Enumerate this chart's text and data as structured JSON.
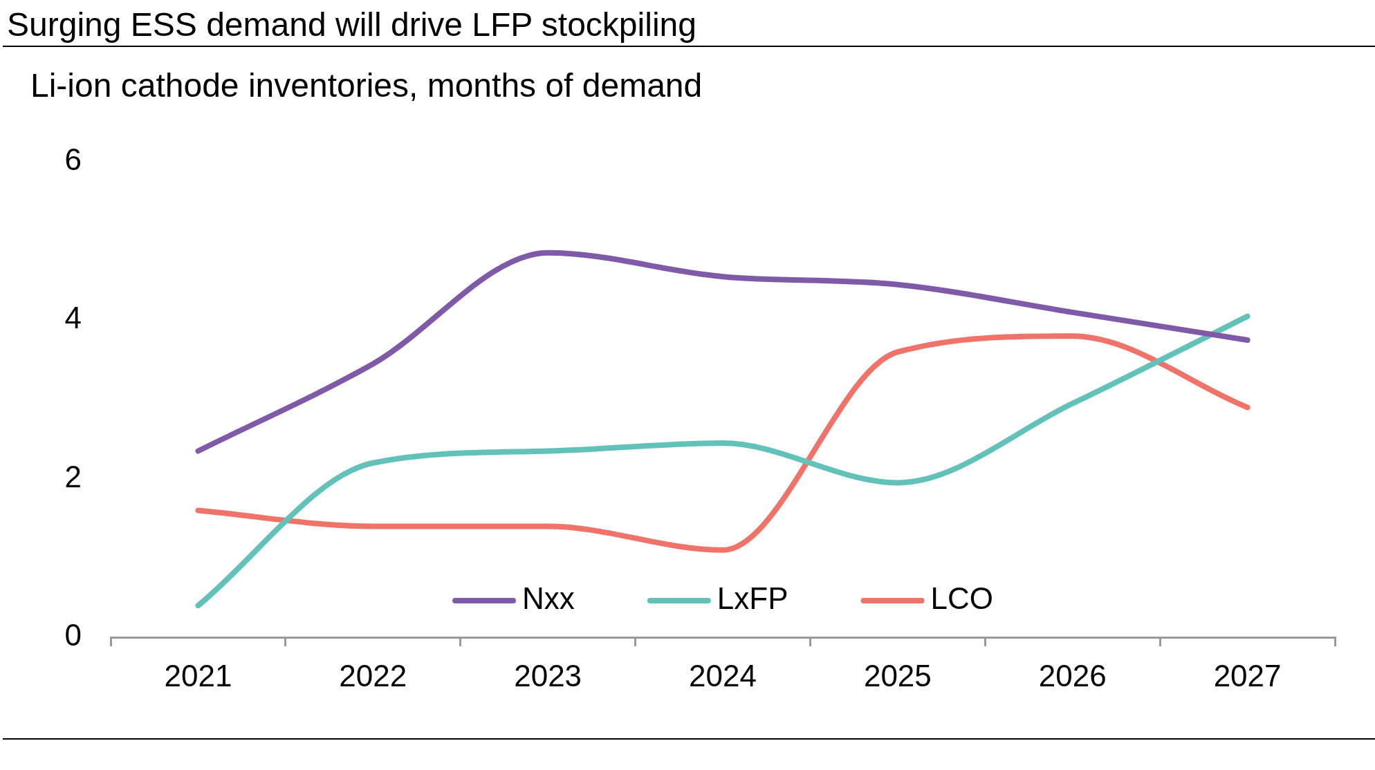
{
  "chart_data": {
    "type": "line",
    "title": "Surging ESS demand will drive LFP stockpiling",
    "subtitle": "Li-ion cathode inventories, months of demand",
    "categories": [
      "2021",
      "2022",
      "2023",
      "2024",
      "2025",
      "2026",
      "2027"
    ],
    "series": [
      {
        "name": "Nxx",
        "color": "#7f5aa8",
        "values": [
          2.35,
          3.45,
          4.85,
          4.55,
          4.45,
          4.1,
          3.75
        ]
      },
      {
        "name": "LxFP",
        "color": "#62c2b9",
        "values": [
          0.4,
          2.2,
          2.35,
          2.45,
          1.95,
          2.95,
          4.05
        ]
      },
      {
        "name": "LCO",
        "color": "#f0736a",
        "values": [
          1.6,
          1.4,
          1.4,
          1.1,
          3.6,
          3.8,
          2.9
        ]
      }
    ],
    "ylim": [
      0,
      6
    ],
    "yticks": [
      0,
      2,
      4,
      6
    ],
    "grid": false,
    "legend": "bottom",
    "marker": "none",
    "line_style": "solid"
  }
}
